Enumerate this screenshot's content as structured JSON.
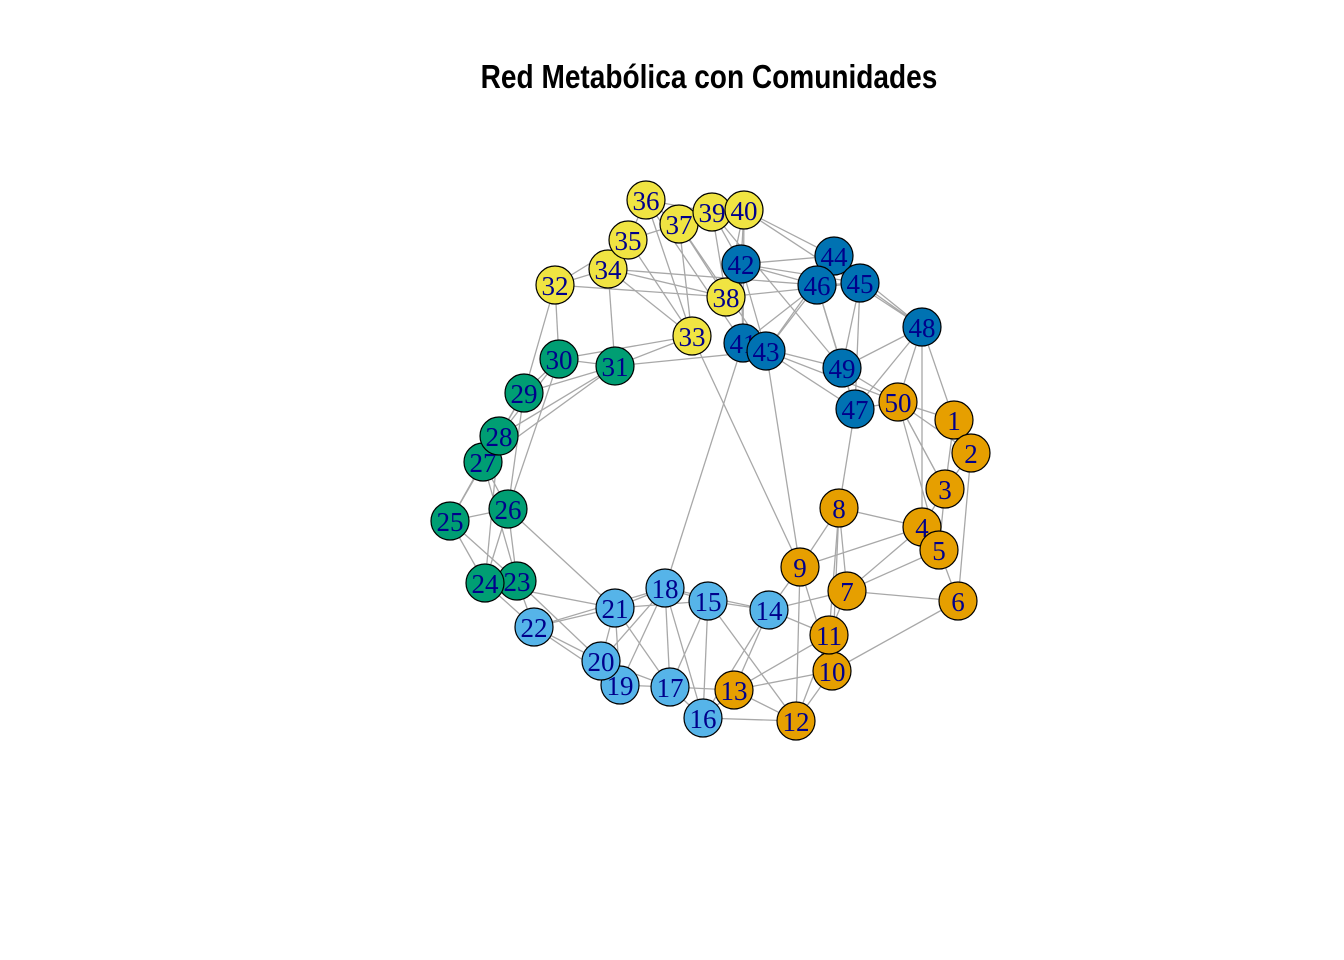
{
  "title": "Red Metabólica con Comunidades",
  "community_colors": {
    "orange": "#e69f00",
    "light_blue": "#56b4e9",
    "green": "#009e73",
    "yellow": "#f0e442",
    "dark_blue": "#0072b2"
  },
  "label_color": "#00008b",
  "edge_color": "#a8a8a8",
  "nodes": [
    {
      "id": "1",
      "community": "orange"
    },
    {
      "id": "2",
      "community": "orange"
    },
    {
      "id": "3",
      "community": "orange"
    },
    {
      "id": "4",
      "community": "orange"
    },
    {
      "id": "5",
      "community": "orange"
    },
    {
      "id": "6",
      "community": "orange"
    },
    {
      "id": "7",
      "community": "orange"
    },
    {
      "id": "8",
      "community": "orange"
    },
    {
      "id": "9",
      "community": "orange"
    },
    {
      "id": "10",
      "community": "orange"
    },
    {
      "id": "11",
      "community": "orange"
    },
    {
      "id": "12",
      "community": "orange"
    },
    {
      "id": "13",
      "community": "orange"
    },
    {
      "id": "14",
      "community": "light_blue"
    },
    {
      "id": "15",
      "community": "light_blue"
    },
    {
      "id": "16",
      "community": "light_blue"
    },
    {
      "id": "17",
      "community": "light_blue"
    },
    {
      "id": "18",
      "community": "light_blue"
    },
    {
      "id": "19",
      "community": "light_blue"
    },
    {
      "id": "20",
      "community": "light_blue"
    },
    {
      "id": "21",
      "community": "light_blue"
    },
    {
      "id": "22",
      "community": "light_blue"
    },
    {
      "id": "23",
      "community": "green"
    },
    {
      "id": "24",
      "community": "green"
    },
    {
      "id": "25",
      "community": "green"
    },
    {
      "id": "26",
      "community": "green"
    },
    {
      "id": "27",
      "community": "green"
    },
    {
      "id": "28",
      "community": "green"
    },
    {
      "id": "29",
      "community": "green"
    },
    {
      "id": "30",
      "community": "green"
    },
    {
      "id": "31",
      "community": "green"
    },
    {
      "id": "32",
      "community": "yellow"
    },
    {
      "id": "33",
      "community": "yellow"
    },
    {
      "id": "34",
      "community": "yellow"
    },
    {
      "id": "35",
      "community": "yellow"
    },
    {
      "id": "36",
      "community": "yellow"
    },
    {
      "id": "37",
      "community": "yellow"
    },
    {
      "id": "38",
      "community": "yellow"
    },
    {
      "id": "39",
      "community": "yellow"
    },
    {
      "id": "40",
      "community": "yellow"
    },
    {
      "id": "41",
      "community": "dark_blue"
    },
    {
      "id": "42",
      "community": "dark_blue"
    },
    {
      "id": "43",
      "community": "dark_blue"
    },
    {
      "id": "44",
      "community": "dark_blue"
    },
    {
      "id": "45",
      "community": "dark_blue"
    },
    {
      "id": "46",
      "community": "dark_blue"
    },
    {
      "id": "47",
      "community": "dark_blue"
    },
    {
      "id": "48",
      "community": "dark_blue"
    },
    {
      "id": "49",
      "community": "dark_blue"
    },
    {
      "id": "50",
      "community": "orange"
    }
  ],
  "edges": [
    [
      "1",
      "2"
    ],
    [
      "1",
      "3"
    ],
    [
      "1",
      "50"
    ],
    [
      "1",
      "48"
    ],
    [
      "2",
      "3"
    ],
    [
      "2",
      "6"
    ],
    [
      "2",
      "50"
    ],
    [
      "3",
      "4"
    ],
    [
      "3",
      "5"
    ],
    [
      "3",
      "50"
    ],
    [
      "4",
      "5"
    ],
    [
      "4",
      "7"
    ],
    [
      "4",
      "8"
    ],
    [
      "4",
      "9"
    ],
    [
      "5",
      "6"
    ],
    [
      "5",
      "7"
    ],
    [
      "6",
      "7"
    ],
    [
      "6",
      "10"
    ],
    [
      "7",
      "8"
    ],
    [
      "7",
      "11"
    ],
    [
      "7",
      "14"
    ],
    [
      "8",
      "9"
    ],
    [
      "8",
      "11"
    ],
    [
      "8",
      "47"
    ],
    [
      "9",
      "10"
    ],
    [
      "9",
      "12"
    ],
    [
      "9",
      "14"
    ],
    [
      "9",
      "43"
    ],
    [
      "10",
      "11"
    ],
    [
      "10",
      "12"
    ],
    [
      "10",
      "13"
    ],
    [
      "11",
      "12"
    ],
    [
      "11",
      "13"
    ],
    [
      "11",
      "14"
    ],
    [
      "12",
      "13"
    ],
    [
      "12",
      "15"
    ],
    [
      "12",
      "16"
    ],
    [
      "13",
      "14"
    ],
    [
      "13",
      "17"
    ],
    [
      "13",
      "16"
    ],
    [
      "14",
      "15"
    ],
    [
      "14",
      "18"
    ],
    [
      "15",
      "16"
    ],
    [
      "15",
      "17"
    ],
    [
      "15",
      "18"
    ],
    [
      "15",
      "21"
    ],
    [
      "16",
      "17"
    ],
    [
      "16",
      "18"
    ],
    [
      "17",
      "18"
    ],
    [
      "17",
      "19"
    ],
    [
      "17",
      "20"
    ],
    [
      "17",
      "21"
    ],
    [
      "18",
      "19"
    ],
    [
      "18",
      "20"
    ],
    [
      "18",
      "21"
    ],
    [
      "18",
      "41"
    ],
    [
      "19",
      "20"
    ],
    [
      "19",
      "21"
    ],
    [
      "19",
      "22"
    ],
    [
      "20",
      "21"
    ],
    [
      "20",
      "22"
    ],
    [
      "20",
      "23"
    ],
    [
      "21",
      "22"
    ],
    [
      "21",
      "24"
    ],
    [
      "21",
      "26"
    ],
    [
      "22",
      "23"
    ],
    [
      "22",
      "24"
    ],
    [
      "23",
      "24"
    ],
    [
      "23",
      "25"
    ],
    [
      "23",
      "26"
    ],
    [
      "23",
      "27"
    ],
    [
      "24",
      "25"
    ],
    [
      "24",
      "26"
    ],
    [
      "24",
      "28"
    ],
    [
      "25",
      "26"
    ],
    [
      "25",
      "27"
    ],
    [
      "25",
      "28"
    ],
    [
      "26",
      "27"
    ],
    [
      "26",
      "29"
    ],
    [
      "26",
      "30"
    ],
    [
      "27",
      "28"
    ],
    [
      "27",
      "29"
    ],
    [
      "27",
      "31"
    ],
    [
      "28",
      "29"
    ],
    [
      "28",
      "30"
    ],
    [
      "28",
      "31"
    ],
    [
      "29",
      "30"
    ],
    [
      "29",
      "31"
    ],
    [
      "29",
      "32"
    ],
    [
      "30",
      "31"
    ],
    [
      "30",
      "32"
    ],
    [
      "30",
      "33"
    ],
    [
      "31",
      "33"
    ],
    [
      "31",
      "34"
    ],
    [
      "31",
      "43"
    ],
    [
      "32",
      "34"
    ],
    [
      "32",
      "35"
    ],
    [
      "32",
      "38"
    ],
    [
      "33",
      "34"
    ],
    [
      "33",
      "35"
    ],
    [
      "33",
      "36"
    ],
    [
      "33",
      "37"
    ],
    [
      "33",
      "9"
    ],
    [
      "34",
      "35"
    ],
    [
      "34",
      "38"
    ],
    [
      "34",
      "46"
    ],
    [
      "35",
      "36"
    ],
    [
      "35",
      "37"
    ],
    [
      "36",
      "37"
    ],
    [
      "36",
      "39"
    ],
    [
      "36",
      "41"
    ],
    [
      "37",
      "38"
    ],
    [
      "37",
      "39"
    ],
    [
      "37",
      "40"
    ],
    [
      "37",
      "43"
    ],
    [
      "38",
      "39"
    ],
    [
      "38",
      "40"
    ],
    [
      "38",
      "45"
    ],
    [
      "39",
      "40"
    ],
    [
      "39",
      "42"
    ],
    [
      "39",
      "49"
    ],
    [
      "40",
      "41"
    ],
    [
      "40",
      "42"
    ],
    [
      "40",
      "44"
    ],
    [
      "40",
      "48"
    ],
    [
      "41",
      "42"
    ],
    [
      "41",
      "43"
    ],
    [
      "41",
      "46"
    ],
    [
      "41",
      "49"
    ],
    [
      "42",
      "43"
    ],
    [
      "42",
      "44"
    ],
    [
      "42",
      "45"
    ],
    [
      "42",
      "46"
    ],
    [
      "43",
      "44"
    ],
    [
      "43",
      "46"
    ],
    [
      "43",
      "47"
    ],
    [
      "43",
      "50"
    ],
    [
      "44",
      "45"
    ],
    [
      "44",
      "46"
    ],
    [
      "44",
      "48"
    ],
    [
      "45",
      "46"
    ],
    [
      "45",
      "47"
    ],
    [
      "45",
      "49"
    ],
    [
      "45",
      "48"
    ],
    [
      "46",
      "47"
    ],
    [
      "46",
      "49"
    ],
    [
      "47",
      "48"
    ],
    [
      "47",
      "49"
    ],
    [
      "47",
      "50"
    ],
    [
      "48",
      "49"
    ],
    [
      "48",
      "50"
    ],
    [
      "48",
      "4"
    ],
    [
      "49",
      "50"
    ],
    [
      "50",
      "3"
    ],
    [
      "50",
      "5"
    ],
    [
      "8",
      "10"
    ],
    [
      "14",
      "16"
    ],
    [
      "18",
      "22"
    ]
  ]
}
